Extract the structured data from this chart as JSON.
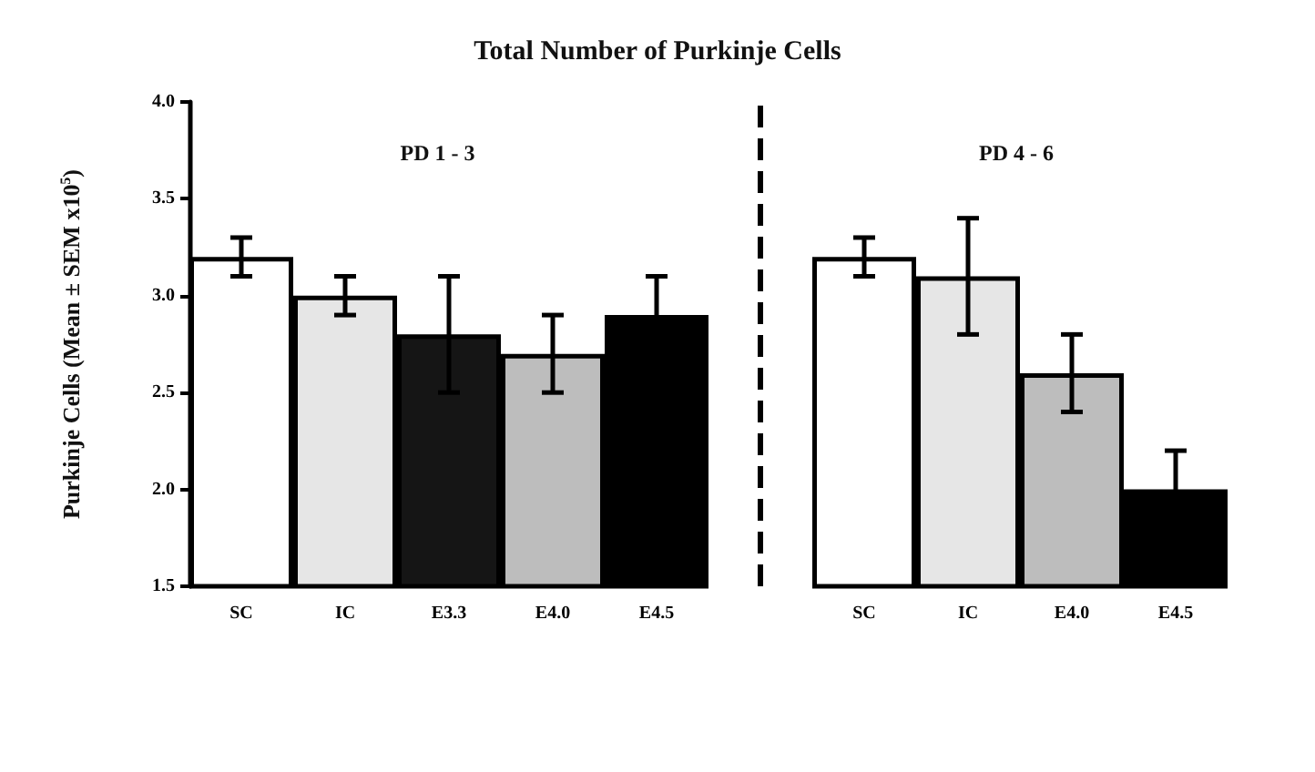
{
  "chart_data": {
    "type": "bar",
    "title": "Total Number of Purkinje Cells",
    "ylabel": "Purkinje Cells (Mean ± SEM x10$^{5}$)",
    "categories": [
      "SC",
      "IC",
      "E3.3",
      "E4.0",
      "E4.5",
      null,
      "SC",
      "IC",
      "E4.0",
      "E4.5"
    ],
    "values": [
      3.2,
      3.0,
      2.8,
      2.7,
      2.9,
      null,
      3.2,
      3.1,
      2.6,
      2.0
    ],
    "errors": [
      0.1,
      0.1,
      0.3,
      0.2,
      0.2,
      null,
      0.1,
      0.3,
      0.2,
      0.2
    ],
    "colors": [
      "#ffffff",
      "#e6e6e6",
      "#151515",
      "#bdbdbd",
      "#000000",
      null,
      "#ffffff",
      "#e6e6e6",
      "#bdbdbd",
      "#000000"
    ],
    "ylim": [
      1.5,
      4.0
    ],
    "yticks": [
      1.5,
      {
        "value": 2,
        "label": "2.0"
      },
      2.5,
      {
        "value": 3,
        "label": "3.0"
      },
      3.5,
      {
        "value": 4,
        "label": "4.0"
      }
    ],
    "annotations": [
      "PD 1 - 3",
      "PD 4 - 6"
    ],
    "data_labels": false
  }
}
